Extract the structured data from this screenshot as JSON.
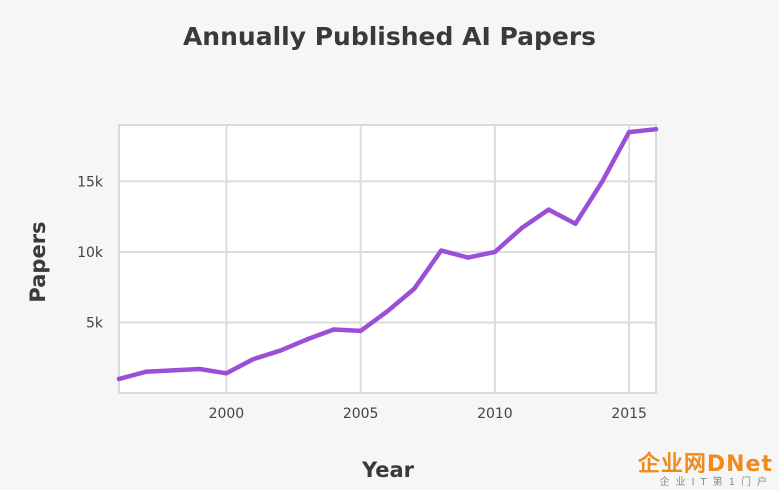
{
  "chart_data": {
    "type": "line",
    "title": "Annually Published AI Papers",
    "xlabel": "Year",
    "ylabel": "Papers",
    "xlim": [
      1996,
      2016
    ],
    "ylim": [
      0,
      19000
    ],
    "x_ticks": [
      2000,
      2005,
      2010,
      2015
    ],
    "y_ticks": [
      5000,
      10000,
      15000
    ],
    "x_tick_labels": [
      "2000",
      "2005",
      "2010",
      "2015"
    ],
    "y_tick_labels": [
      "5k",
      "10k",
      "15k"
    ],
    "grid": true,
    "legend": "none",
    "series": [
      {
        "color": "#9b4fd6",
        "x": [
          1996,
          1997,
          1998,
          1999,
          2000,
          2001,
          2002,
          2003,
          2004,
          2005,
          2006,
          2007,
          2008,
          2009,
          2010,
          2011,
          2012,
          2013,
          2014,
          2015,
          2016
        ],
        "y": [
          1000,
          1500,
          1600,
          1700,
          1400,
          2400,
          3000,
          3800,
          4500,
          4400,
          5800,
          7400,
          10100,
          9600,
          10000,
          11700,
          13000,
          12000,
          15000,
          18500,
          18700
        ]
      }
    ]
  },
  "watermark": {
    "logo_text": "企业网DNet",
    "sub_text": "企业IT第1门户"
  }
}
